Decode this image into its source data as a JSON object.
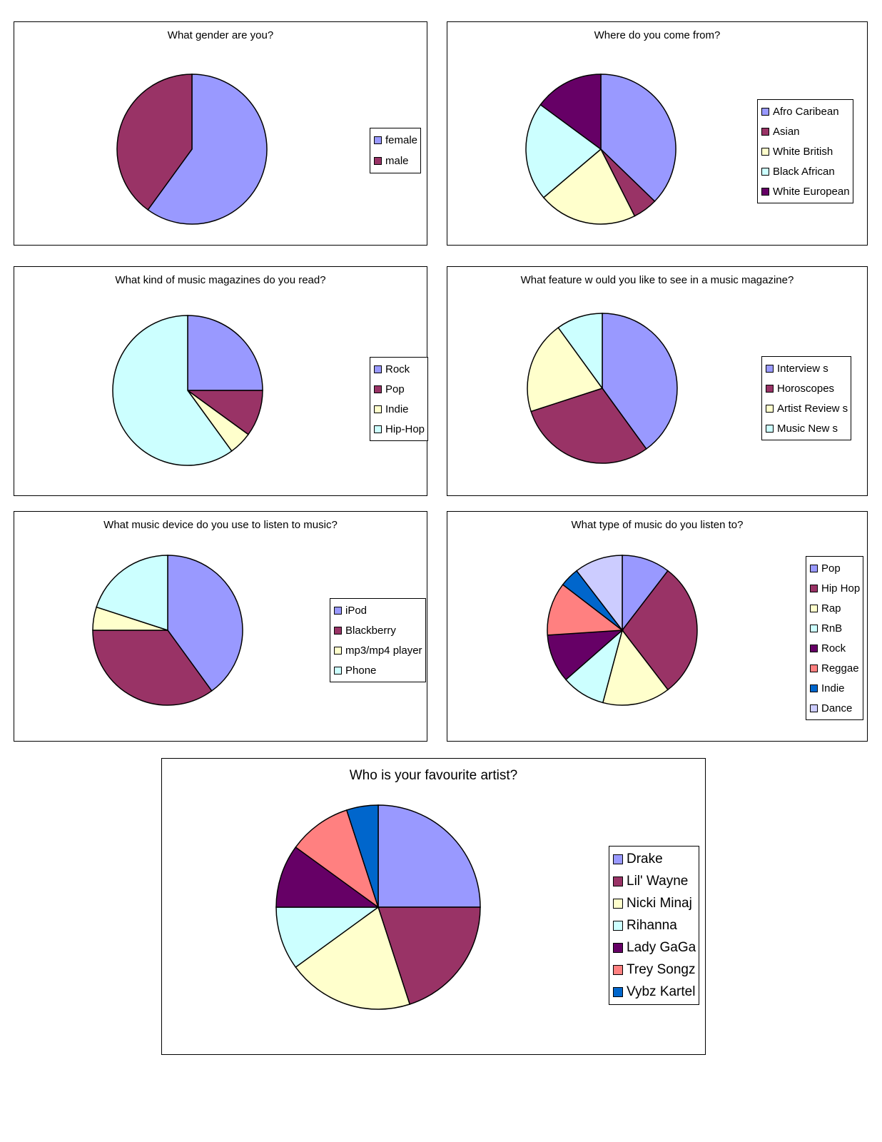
{
  "colors": {
    "periwinkle": "#9999ff",
    "plum": "#993366",
    "ivory": "#ffffcc",
    "light_cyan": "#ccffff",
    "dark_purple": "#660066",
    "salmon": "#ff8080",
    "blue": "#0066cc",
    "lavender": "#ccccff"
  },
  "chart_data": [
    {
      "id": "gender",
      "type": "pie",
      "title": "What gender are you?",
      "labels": [
        "female",
        "male"
      ],
      "values": [
        60,
        40
      ],
      "colors": [
        "#9999ff",
        "#993366"
      ],
      "legend_position": "right"
    },
    {
      "id": "origin",
      "type": "pie",
      "title": "Where do you come from?",
      "labels": [
        "Afro Caribean",
        "Asian",
        "White British",
        "Black African",
        "White European"
      ],
      "values": [
        35,
        5,
        20,
        20,
        14
      ],
      "colors": [
        "#9999ff",
        "#993366",
        "#ffffcc",
        "#ccffff",
        "#660066"
      ],
      "legend_position": "right"
    },
    {
      "id": "magazines",
      "type": "pie",
      "title": "What kind of music magazines do you read?",
      "labels": [
        "Rock",
        "Pop",
        "Indie",
        "Hip-Hop"
      ],
      "values": [
        25,
        10,
        5,
        60
      ],
      "colors": [
        "#9999ff",
        "#993366",
        "#ffffcc",
        "#ccffff"
      ],
      "legend_position": "right"
    },
    {
      "id": "feature",
      "type": "pie",
      "title": "What feature w ould you like to see in a music magazine?",
      "labels": [
        "Interview s",
        "Horoscopes",
        "Artist Review s",
        "Music New s"
      ],
      "values": [
        40,
        30,
        20,
        10
      ],
      "colors": [
        "#9999ff",
        "#993366",
        "#ffffcc",
        "#ccffff"
      ],
      "legend_position": "right"
    },
    {
      "id": "device",
      "type": "pie",
      "title": "What music device do you use to listen to music?",
      "labels": [
        "iPod",
        "Blackberry",
        "mp3/mp4 player",
        "Phone"
      ],
      "values": [
        40,
        35,
        5,
        20
      ],
      "colors": [
        "#9999ff",
        "#993366",
        "#ffffcc",
        "#ccffff"
      ],
      "legend_position": "right"
    },
    {
      "id": "genre",
      "type": "pie",
      "title": "What type of music do you listen to?",
      "labels": [
        "Pop",
        "Hip Hop",
        "Rap",
        "RnB",
        "Rock",
        "Reggae",
        "Indie",
        "Dance"
      ],
      "values": [
        10,
        28,
        14,
        9,
        10,
        11,
        4,
        10
      ],
      "colors": [
        "#9999ff",
        "#993366",
        "#ffffcc",
        "#ccffff",
        "#660066",
        "#ff8080",
        "#0066cc",
        "#ccccff"
      ],
      "legend_position": "right"
    },
    {
      "id": "artist",
      "type": "pie",
      "title": "Who is your favourite artist?",
      "labels": [
        "Drake",
        "Lil' Wayne",
        "Nicki Minaj",
        "Rihanna",
        "Lady GaGa",
        "Trey Songz",
        "Vybz Kartel"
      ],
      "values": [
        25,
        20,
        20,
        10,
        10,
        10,
        5
      ],
      "colors": [
        "#9999ff",
        "#993366",
        "#ffffcc",
        "#ccffff",
        "#660066",
        "#ff8080",
        "#0066cc"
      ],
      "legend_position": "right"
    }
  ]
}
